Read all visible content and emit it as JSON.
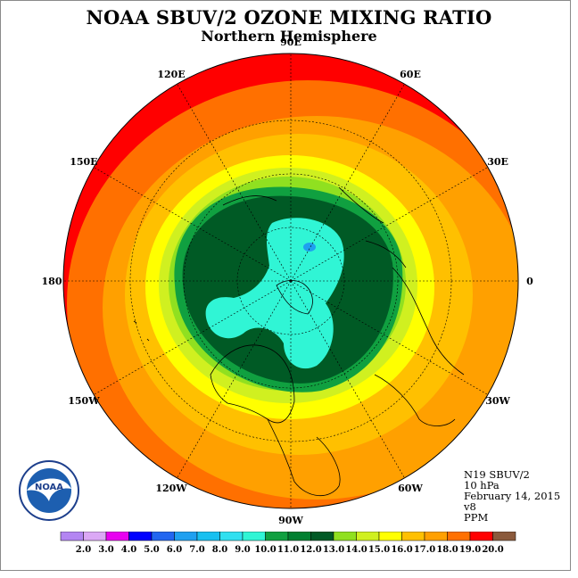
{
  "header": {
    "title": "NOAA SBUV/2 OZONE MIXING RATIO",
    "subtitle": "Northern Hemisphere"
  },
  "longitude_labels": [
    "90E",
    "60E",
    "30E",
    "0",
    "30W",
    "60W",
    "90W",
    "120W",
    "150W",
    "180",
    "150E",
    "120E"
  ],
  "info": {
    "satellite": "N19 SBUV/2",
    "level": "10 hPa",
    "date": "February 14, 2015",
    "version": "v8",
    "units": "PPM"
  },
  "logo": {
    "text": "NOAA"
  },
  "colorbar": {
    "labels": [
      "2.0",
      "3.0",
      "4.0",
      "5.0",
      "6.0",
      "7.0",
      "8.0",
      "9.0",
      "10.0",
      "11.0",
      "12.0",
      "13.0",
      "14.0",
      "15.0",
      "16.0",
      "17.0",
      "18.0",
      "19.0",
      "20.0"
    ],
    "colors": [
      "#b385f2",
      "#dba8f5",
      "#e800f0",
      "#0000ff",
      "#2266f0",
      "#1fa0f0",
      "#18c0f0",
      "#30e0f0",
      "#30f5d5",
      "#10a040",
      "#008030",
      "#005a25",
      "#90e020",
      "#d0f020",
      "#ffff00",
      "#ffc000",
      "#ffa000",
      "#ff7000",
      "#ff0000",
      "#8b5a3c"
    ]
  },
  "map_colors": {
    "red": "#ff0000",
    "orange_red": "#ff7000",
    "orange": "#ffa000",
    "light_orange": "#ffc000",
    "yellow": "#ffff00",
    "yellow_green": "#d0f020",
    "lime": "#90e020",
    "green": "#10a040",
    "dark_green": "#005a25",
    "aqua": "#30f5d5",
    "blue_spot": "#1fa0f0"
  }
}
